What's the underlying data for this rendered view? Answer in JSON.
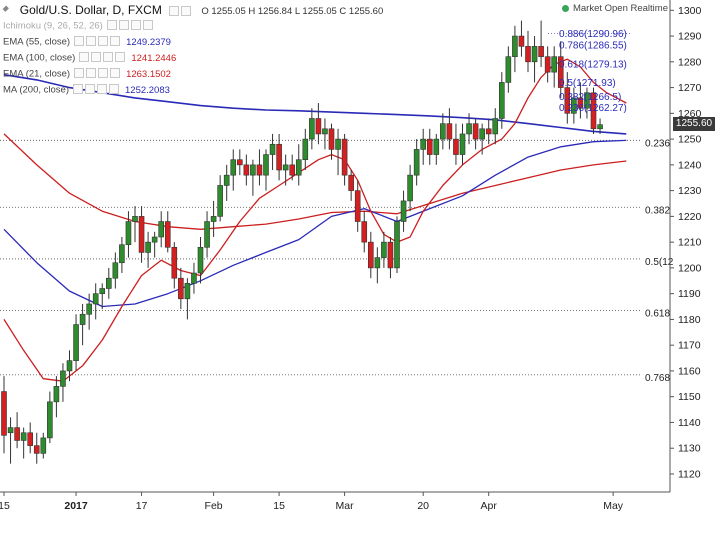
{
  "legend": {
    "title": "Gold/U.S. Dollar, D, FXCM",
    "ohlc": "O 1255.05 H 1256.84 L 1255.05 C 1255.60",
    "indicators": [
      {
        "label": "Ichimoku (9, 26, 52, 26)",
        "value": "",
        "color": "#aaaaaa",
        "muted": true
      },
      {
        "label": "EMA (55, close)",
        "value": "1249.2379",
        "color": "#2a2ab8",
        "muted": false
      },
      {
        "label": "EMA (100, close)",
        "value": "1241.2446",
        "color": "#cc1f1f",
        "muted": false
      },
      {
        "label": "EMA (21, close)",
        "value": "1263.1502",
        "color": "#cc1f1f",
        "muted": false
      },
      {
        "label": "MA (200, close)",
        "value": "1252.2083",
        "color": "#2a2ab8",
        "muted": false
      }
    ]
  },
  "market_status": "Market Open Realtime",
  "current_price": "1255.60",
  "chart_data": {
    "type": "candlestick",
    "y_axis": {
      "min": 1113,
      "max": 1304,
      "ticks": [
        1120,
        1130,
        1140,
        1150,
        1160,
        1170,
        1180,
        1190,
        1200,
        1210,
        1220,
        1230,
        1240,
        1250,
        1260,
        1270,
        1280,
        1290,
        1300
      ]
    },
    "x_axis": {
      "labels": [
        {
          "text": "15",
          "bar": 0,
          "bold": false
        },
        {
          "text": "2017",
          "bar": 11,
          "bold": true
        },
        {
          "text": "17",
          "bar": 21,
          "bold": false
        },
        {
          "text": "Feb",
          "bar": 32,
          "bold": false
        },
        {
          "text": "15",
          "bar": 42,
          "bold": false
        },
        {
          "text": "Mar",
          "bar": 52,
          "bold": false
        },
        {
          "text": "20",
          "bar": 64,
          "bold": false
        },
        {
          "text": "Apr",
          "bar": 74,
          "bold": false
        },
        {
          "text": "May",
          "bar": 93,
          "bold": false
        }
      ]
    },
    "candles": [
      [
        1152,
        1158,
        1128,
        1135
      ],
      [
        1136,
        1142,
        1124,
        1138
      ],
      [
        1138,
        1144,
        1130,
        1133
      ],
      [
        1133,
        1138,
        1126,
        1136
      ],
      [
        1136,
        1140,
        1128,
        1131
      ],
      [
        1131,
        1136,
        1124,
        1128
      ],
      [
        1128,
        1136,
        1126,
        1134
      ],
      [
        1134,
        1152,
        1132,
        1148
      ],
      [
        1148,
        1158,
        1142,
        1154
      ],
      [
        1154,
        1163,
        1148,
        1160
      ],
      [
        1160,
        1168,
        1156,
        1164
      ],
      [
        1164,
        1182,
        1160,
        1178
      ],
      [
        1178,
        1186,
        1170,
        1182
      ],
      [
        1182,
        1190,
        1176,
        1186
      ],
      [
        1186,
        1194,
        1180,
        1190
      ],
      [
        1190,
        1194,
        1184,
        1192
      ],
      [
        1192,
        1200,
        1188,
        1196
      ],
      [
        1196,
        1206,
        1192,
        1202
      ],
      [
        1202,
        1212,
        1198,
        1209
      ],
      [
        1209,
        1222,
        1204,
        1218
      ],
      [
        1218,
        1224,
        1210,
        1220
      ],
      [
        1220,
        1224,
        1202,
        1206
      ],
      [
        1206,
        1214,
        1200,
        1210
      ],
      [
        1210,
        1214,
        1204,
        1212
      ],
      [
        1212,
        1222,
        1208,
        1218
      ],
      [
        1218,
        1222,
        1206,
        1208
      ],
      [
        1208,
        1210,
        1192,
        1196
      ],
      [
        1196,
        1200,
        1184,
        1188
      ],
      [
        1188,
        1196,
        1180,
        1194
      ],
      [
        1194,
        1202,
        1190,
        1198
      ],
      [
        1198,
        1212,
        1194,
        1208
      ],
      [
        1208,
        1222,
        1204,
        1218
      ],
      [
        1218,
        1226,
        1212,
        1220
      ],
      [
        1220,
        1236,
        1218,
        1232
      ],
      [
        1232,
        1240,
        1226,
        1236
      ],
      [
        1236,
        1246,
        1230,
        1242
      ],
      [
        1242,
        1246,
        1236,
        1240
      ],
      [
        1240,
        1244,
        1232,
        1236
      ],
      [
        1236,
        1242,
        1228,
        1240
      ],
      [
        1240,
        1246,
        1232,
        1236
      ],
      [
        1236,
        1246,
        1230,
        1244
      ],
      [
        1244,
        1252,
        1238,
        1248
      ],
      [
        1248,
        1252,
        1234,
        1238
      ],
      [
        1238,
        1244,
        1232,
        1240
      ],
      [
        1240,
        1244,
        1234,
        1236
      ],
      [
        1236,
        1248,
        1232,
        1242
      ],
      [
        1242,
        1254,
        1238,
        1250
      ],
      [
        1250,
        1262,
        1246,
        1258
      ],
      [
        1258,
        1264,
        1248,
        1252
      ],
      [
        1252,
        1258,
        1246,
        1254
      ],
      [
        1254,
        1256,
        1242,
        1246
      ],
      [
        1246,
        1254,
        1236,
        1250
      ],
      [
        1250,
        1252,
        1232,
        1236
      ],
      [
        1236,
        1238,
        1226,
        1230
      ],
      [
        1230,
        1234,
        1214,
        1218
      ],
      [
        1218,
        1222,
        1206,
        1210
      ],
      [
        1210,
        1214,
        1196,
        1200
      ],
      [
        1200,
        1208,
        1194,
        1204
      ],
      [
        1204,
        1214,
        1200,
        1210
      ],
      [
        1210,
        1212,
        1196,
        1200
      ],
      [
        1200,
        1220,
        1198,
        1218
      ],
      [
        1218,
        1230,
        1214,
        1226
      ],
      [
        1226,
        1240,
        1222,
        1236
      ],
      [
        1236,
        1250,
        1232,
        1246
      ],
      [
        1246,
        1254,
        1240,
        1250
      ],
      [
        1250,
        1254,
        1240,
        1244
      ],
      [
        1244,
        1252,
        1240,
        1250
      ],
      [
        1250,
        1260,
        1246,
        1256
      ],
      [
        1256,
        1262,
        1246,
        1250
      ],
      [
        1250,
        1256,
        1240,
        1244
      ],
      [
        1244,
        1256,
        1240,
        1252
      ],
      [
        1252,
        1260,
        1248,
        1256
      ],
      [
        1256,
        1258,
        1246,
        1250
      ],
      [
        1250,
        1256,
        1244,
        1254
      ],
      [
        1254,
        1258,
        1248,
        1252
      ],
      [
        1252,
        1262,
        1248,
        1258
      ],
      [
        1258,
        1276,
        1254,
        1272
      ],
      [
        1272,
        1286,
        1268,
        1282
      ],
      [
        1282,
        1294,
        1276,
        1290
      ],
      [
        1290,
        1296,
        1282,
        1286
      ],
      [
        1286,
        1292,
        1276,
        1280
      ],
      [
        1280,
        1290,
        1272,
        1286
      ],
      [
        1286,
        1296,
        1278,
        1282
      ],
      [
        1282,
        1286,
        1272,
        1276
      ],
      [
        1276,
        1286,
        1270,
        1282
      ],
      [
        1282,
        1288,
        1266,
        1270
      ],
      [
        1270,
        1276,
        1256,
        1260
      ],
      [
        1260,
        1270,
        1256,
        1266
      ],
      [
        1266,
        1272,
        1258,
        1262
      ],
      [
        1262,
        1270,
        1258,
        1268
      ],
      [
        1268,
        1270,
        1252,
        1254
      ],
      [
        1254,
        1258,
        1252,
        1255.6
      ]
    ],
    "series": [
      {
        "name": "MA (200, close)",
        "color": "#2a2ab8",
        "width": 1.6,
        "values": [
          [
            0,
            1275
          ],
          [
            5,
            1273
          ],
          [
            10,
            1270
          ],
          [
            15,
            1268
          ],
          [
            20,
            1266
          ],
          [
            25,
            1264.5
          ],
          [
            30,
            1263
          ],
          [
            35,
            1262
          ],
          [
            40,
            1261.3
          ],
          [
            45,
            1261
          ],
          [
            50,
            1260.5
          ],
          [
            55,
            1260
          ],
          [
            60,
            1259.5
          ],
          [
            65,
            1259
          ],
          [
            70,
            1258.3
          ],
          [
            75,
            1257.5
          ],
          [
            80,
            1256
          ],
          [
            85,
            1254.5
          ],
          [
            90,
            1253
          ],
          [
            95,
            1252
          ]
        ]
      },
      {
        "name": "EMA (100, close)",
        "color": "#cc1f1f",
        "width": 1.3,
        "values": [
          [
            0,
            1252
          ],
          [
            5,
            1240
          ],
          [
            10,
            1229
          ],
          [
            15,
            1222
          ],
          [
            20,
            1218
          ],
          [
            25,
            1216
          ],
          [
            30,
            1215
          ],
          [
            35,
            1216
          ],
          [
            40,
            1217
          ],
          [
            45,
            1219
          ],
          [
            50,
            1221.5
          ],
          [
            55,
            1222
          ],
          [
            60,
            1221
          ],
          [
            65,
            1225
          ],
          [
            70,
            1229
          ],
          [
            75,
            1232
          ],
          [
            80,
            1235
          ],
          [
            85,
            1238
          ],
          [
            90,
            1240
          ],
          [
            95,
            1241.5
          ]
        ]
      },
      {
        "name": "EMA (55, close)",
        "color": "#2a2ab8",
        "width": 1.3,
        "values": [
          [
            0,
            1215
          ],
          [
            5,
            1202
          ],
          [
            10,
            1191
          ],
          [
            15,
            1185
          ],
          [
            20,
            1186
          ],
          [
            25,
            1190
          ],
          [
            30,
            1195
          ],
          [
            35,
            1201
          ],
          [
            40,
            1206
          ],
          [
            45,
            1211
          ],
          [
            50,
            1220
          ],
          [
            55,
            1223
          ],
          [
            60,
            1218
          ],
          [
            65,
            1223
          ],
          [
            70,
            1228
          ],
          [
            75,
            1236
          ],
          [
            80,
            1243
          ],
          [
            85,
            1247
          ],
          [
            90,
            1249
          ],
          [
            95,
            1249.5
          ]
        ]
      },
      {
        "name": "EMA (21, close)",
        "color": "#cc1f1f",
        "width": 1.3,
        "values": [
          [
            0,
            1180
          ],
          [
            3,
            1168
          ],
          [
            6,
            1157
          ],
          [
            9,
            1156
          ],
          [
            12,
            1162
          ],
          [
            15,
            1172
          ],
          [
            18,
            1185
          ],
          [
            21,
            1197
          ],
          [
            24,
            1203
          ],
          [
            27,
            1199
          ],
          [
            30,
            1197
          ],
          [
            33,
            1207
          ],
          [
            36,
            1218
          ],
          [
            39,
            1227
          ],
          [
            42,
            1232
          ],
          [
            45,
            1237
          ],
          [
            48,
            1242
          ],
          [
            50,
            1244
          ],
          [
            52,
            1242
          ],
          [
            54,
            1234
          ],
          [
            56,
            1222
          ],
          [
            58,
            1213
          ],
          [
            60,
            1210
          ],
          [
            62,
            1212
          ],
          [
            64,
            1222
          ],
          [
            67,
            1232
          ],
          [
            70,
            1240
          ],
          [
            73,
            1246
          ],
          [
            76,
            1250
          ],
          [
            78,
            1256
          ],
          [
            80,
            1266
          ],
          [
            82,
            1274
          ],
          [
            84,
            1279
          ],
          [
            86,
            1281
          ],
          [
            88,
            1278
          ],
          [
            90,
            1272
          ],
          [
            92,
            1268
          ],
          [
            95,
            1264
          ]
        ]
      }
    ],
    "horizontal_levels": [
      {
        "price": 1249.5,
        "label": "0.236"
      },
      {
        "price": 1223.5,
        "label": "0.382"
      },
      {
        "price": 1203.5,
        "label": "0.5(12"
      },
      {
        "price": 1183.5,
        "label": "0.618"
      },
      {
        "price": 1158.5,
        "label": "0.768"
      }
    ],
    "fib_labels": [
      {
        "price": 1290.96,
        "text": "0.886(1290.96)"
      },
      {
        "price": 1286.55,
        "text": "0.786(1286.55)"
      },
      {
        "price": 1279.13,
        "text": "0.618(1279.13)"
      },
      {
        "price": 1271.93,
        "text": "0.5(1271.93)"
      },
      {
        "price": 1266.5,
        "text": "0.382(1266.5)"
      },
      {
        "price": 1262.27,
        "text": "0.236(1262.27)"
      }
    ]
  }
}
